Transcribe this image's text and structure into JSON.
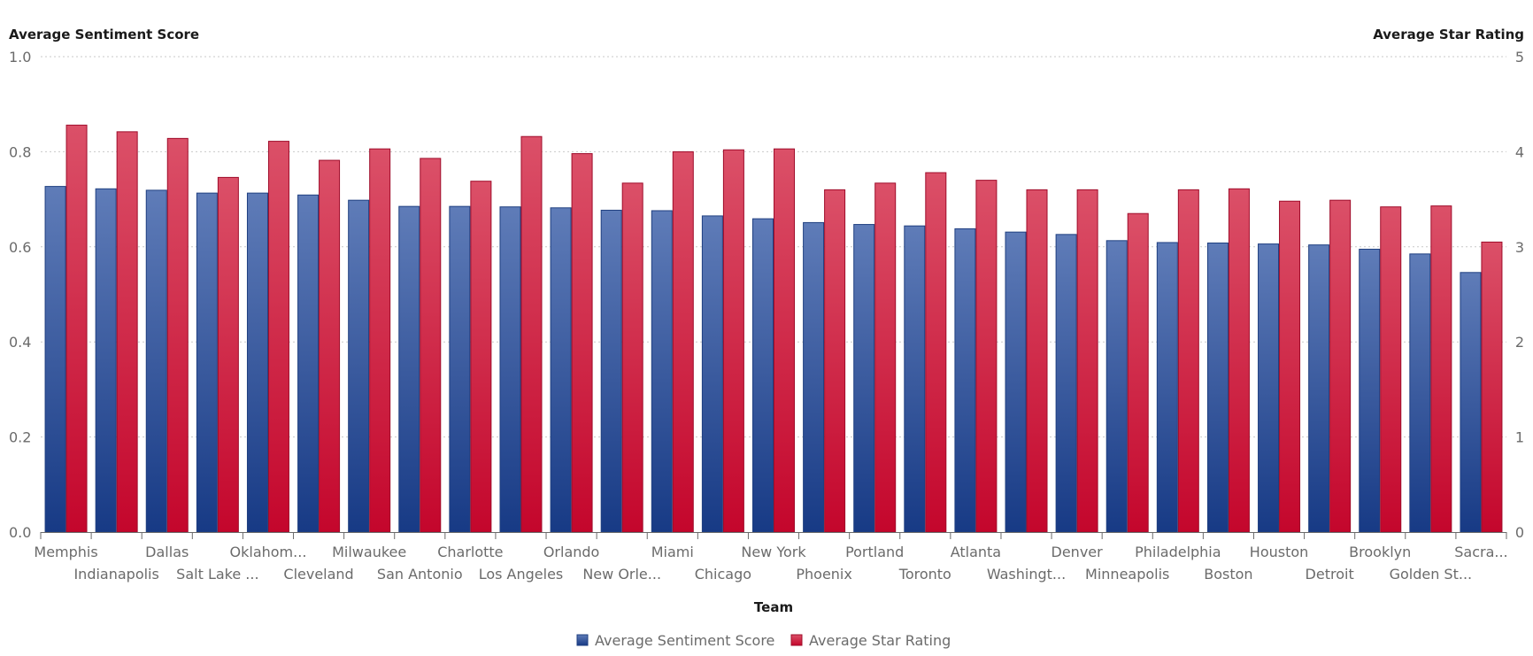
{
  "chart_data": {
    "type": "bar",
    "xlabel": "Team",
    "ylabel": "Average Sentiment Score",
    "y2label": "Average Star Rating",
    "ylim": [
      0,
      1
    ],
    "y2lim": [
      0,
      5
    ],
    "yticks": [
      "0.0",
      "0.2",
      "0.4",
      "0.6",
      "0.8",
      "1.0"
    ],
    "y2ticks": [
      "0",
      "1",
      "2",
      "3",
      "4",
      "5"
    ],
    "categories": [
      "Memphis",
      "Indianapolis",
      "Dallas",
      "Salt Lake ...",
      "Oklahom...",
      "Cleveland",
      "Milwaukee",
      "San Antonio",
      "Charlotte",
      "Los Angeles",
      "Orlando",
      "New Orle...",
      "Miami",
      "Chicago",
      "New York",
      "Phoenix",
      "Portland",
      "Toronto",
      "Atlanta",
      "Washingt...",
      "Denver",
      "Minneapolis",
      "Philadelphia",
      "Boston",
      "Houston",
      "Detroit",
      "Brooklyn",
      "Golden St...",
      "Sacra..."
    ],
    "series": [
      {
        "name": "Average Sentiment Score",
        "axis": "left",
        "color": "#2f4f9a",
        "values": [
          0.727,
          0.722,
          0.719,
          0.713,
          0.713,
          0.709,
          0.698,
          0.685,
          0.685,
          0.684,
          0.682,
          0.677,
          0.676,
          0.665,
          0.659,
          0.651,
          0.647,
          0.644,
          0.638,
          0.631,
          0.626,
          0.613,
          0.609,
          0.608,
          0.606,
          0.604,
          0.595,
          0.585,
          0.546
        ]
      },
      {
        "name": "Average Star Rating",
        "axis": "right",
        "color": "#d4263f",
        "values": [
          4.28,
          4.21,
          4.14,
          3.73,
          4.11,
          3.91,
          4.03,
          3.93,
          3.69,
          4.16,
          3.98,
          3.67,
          4.0,
          4.02,
          4.03,
          3.6,
          3.67,
          3.78,
          3.7,
          3.6,
          3.6,
          3.35,
          3.6,
          3.61,
          3.48,
          3.49,
          3.42,
          3.43,
          3.05
        ]
      }
    ],
    "legend_position": "bottom-center",
    "grid": true
  }
}
